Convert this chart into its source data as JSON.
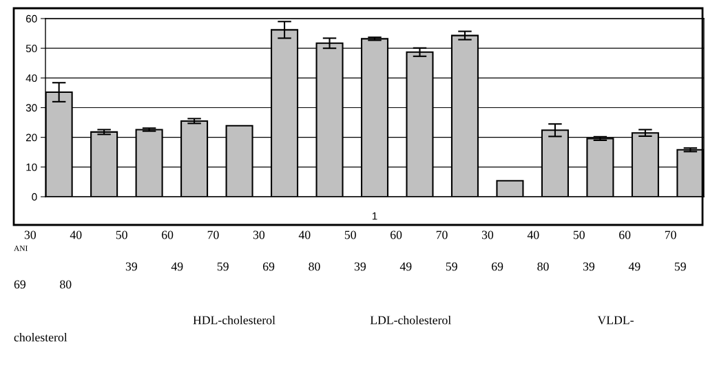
{
  "chart_data": {
    "type": "bar",
    "categories": [
      null,
      null,
      null,
      null,
      null,
      null,
      null,
      "1",
      null,
      null,
      null,
      null,
      null,
      null,
      null
    ],
    "values": [
      35.2,
      21.8,
      22.6,
      25.5,
      23.9,
      56.2,
      51.7,
      53.2,
      48.7,
      54.3,
      5.4,
      22.4,
      19.6,
      21.5,
      15.8
    ],
    "errors": [
      3.2,
      0.8,
      0.5,
      0.8,
      null,
      2.8,
      1.7,
      0.5,
      1.4,
      1.4,
      null,
      2.1,
      0.6,
      1.1,
      0.6
    ],
    "color": "#c0c0c0",
    "ylim": [
      0,
      60
    ],
    "yticks": [
      0,
      10,
      20,
      30,
      40,
      50,
      60
    ],
    "grid": "y",
    "annotations": [
      "30           40           50           60           70           30           40           50           60           70           30           40           50           60           70",
      "ANI",
      "39           49           59           69           80           39           49           59           69           80           39           49           59",
      "69           80",
      "HDL-cholesterol                               LDL-cholesterol                                                VLDL-",
      "cholesterol"
    ]
  }
}
